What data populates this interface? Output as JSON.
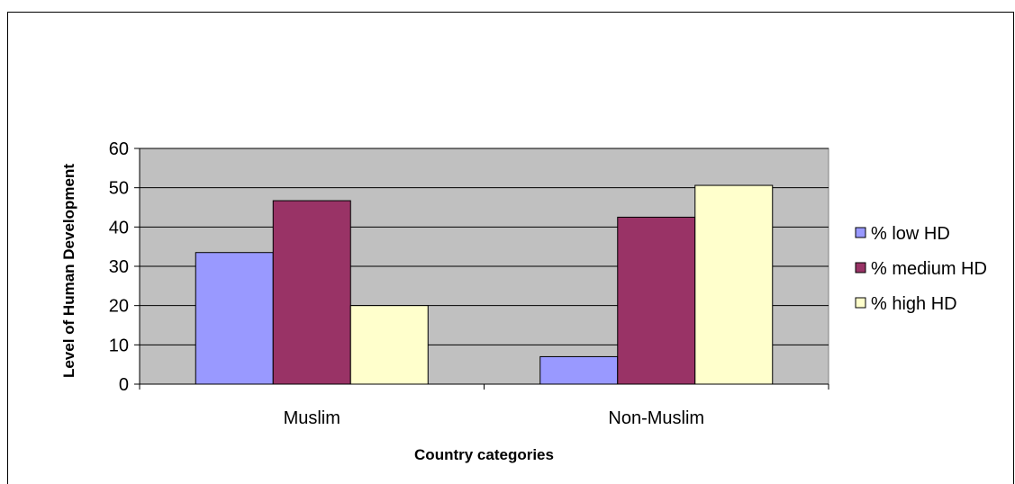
{
  "chart_data": {
    "type": "bar",
    "title": "",
    "xlabel": "Country categories",
    "ylabel": "Level of Human Development",
    "categories": [
      "Muslim",
      "Non-Muslim"
    ],
    "series": [
      {
        "name": "% low HD",
        "values": [
          33.5,
          7
        ],
        "color": "#9999ff"
      },
      {
        "name": "% medium HD",
        "values": [
          46.7,
          42.5
        ],
        "color": "#993366"
      },
      {
        "name": "% high HD",
        "values": [
          20,
          50.6
        ],
        "color": "#ffffcc"
      }
    ],
    "ylim": [
      0,
      60
    ],
    "yticks": [
      "0",
      "10",
      "20",
      "30",
      "40",
      "50",
      "60"
    ],
    "grid": true,
    "plot_background": "#c0c0c0",
    "legend": "right"
  }
}
